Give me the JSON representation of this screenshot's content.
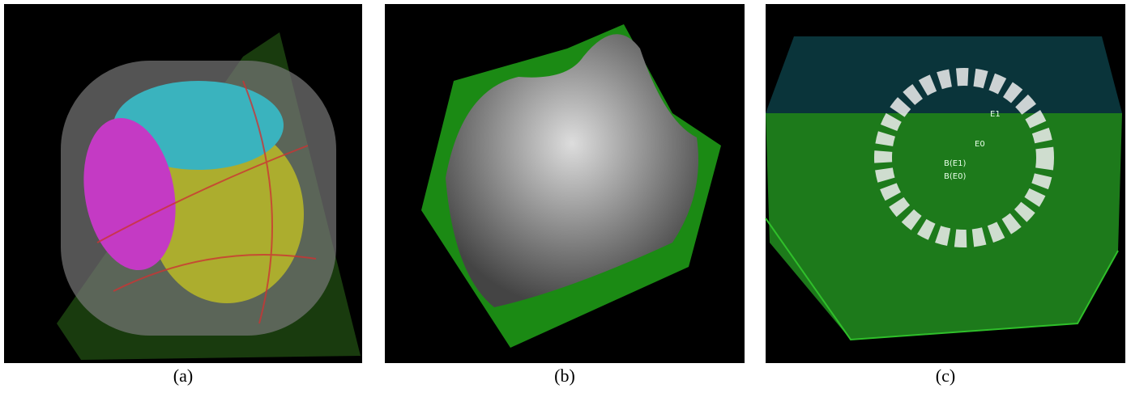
{
  "panels": [
    {
      "caption": "(a)"
    },
    {
      "caption": "(b)"
    },
    {
      "caption": "(c)",
      "labels": [
        "E1",
        "E0",
        "B(E1)",
        "B(E0)"
      ]
    }
  ]
}
